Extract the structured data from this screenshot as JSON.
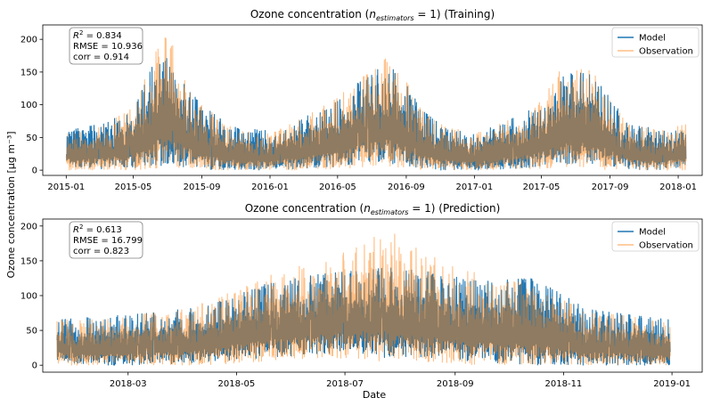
{
  "figure": {
    "ylabel": "Ozone concentration [μg m⁻³]",
    "xlabel": "Date"
  },
  "colors": {
    "model": "#1f77b4",
    "observation": "#ff7f0e",
    "overlap": "#8b7a61"
  },
  "chart_data": [
    {
      "type": "line",
      "title_prefix": "Ozone concentration (",
      "title_sym": "n",
      "title_sub": "estimators",
      "title_eq": " = 1)",
      "title_suffix": " (Training)",
      "x_range": [
        "2014-11-20",
        "2018-02-13"
      ],
      "ylim": [
        -8,
        222
      ],
      "y_ticks": [
        0,
        50,
        100,
        150,
        200
      ],
      "x_ticks": [
        {
          "date": "2015-01-01",
          "label": "2015-01"
        },
        {
          "date": "2015-05-01",
          "label": "2015-05"
        },
        {
          "date": "2015-09-01",
          "label": "2015-09"
        },
        {
          "date": "2016-01-01",
          "label": "2016-01"
        },
        {
          "date": "2016-05-01",
          "label": "2016-05"
        },
        {
          "date": "2016-09-01",
          "label": "2016-09"
        },
        {
          "date": "2017-01-01",
          "label": "2017-01"
        },
        {
          "date": "2017-05-01",
          "label": "2017-05"
        },
        {
          "date": "2017-09-01",
          "label": "2017-09"
        },
        {
          "date": "2018-01-01",
          "label": "2018-01"
        }
      ],
      "stats": {
        "r2_label": "R",
        "r2_sup": "2",
        "r2_value": " =  0.834",
        "rmse": "RMSE = 10.936",
        "corr": "corr =  0.914"
      },
      "legend": [
        "Model",
        "Observation"
      ],
      "series": [
        {
          "name": "Model",
          "x": [
            "2015-01-01",
            "2015-03-01",
            "2015-05-01",
            "2015-06-15",
            "2015-07-01",
            "2015-08-01",
            "2015-09-01",
            "2015-10-01",
            "2015-11-01",
            "2016-01-01",
            "2016-03-01",
            "2016-05-01",
            "2016-06-01",
            "2016-07-01",
            "2016-08-01",
            "2016-09-01",
            "2016-10-01",
            "2016-11-01",
            "2017-01-01",
            "2017-03-01",
            "2017-05-01",
            "2017-06-01",
            "2017-07-01",
            "2017-08-01",
            "2017-09-01",
            "2017-10-01",
            "2017-12-01",
            "2018-01-15"
          ],
          "y_high": [
            60,
            70,
            90,
            180,
            170,
            130,
            100,
            80,
            65,
            60,
            80,
            105,
            130,
            145,
            170,
            130,
            90,
            70,
            55,
            75,
            100,
            140,
            150,
            145,
            110,
            75,
            60,
            60
          ],
          "y_low": [
            5,
            2,
            3,
            5,
            10,
            5,
            2,
            0,
            0,
            0,
            2,
            5,
            8,
            10,
            8,
            5,
            2,
            0,
            0,
            2,
            5,
            8,
            10,
            8,
            5,
            0,
            0,
            5
          ]
        },
        {
          "name": "Observation",
          "x": [
            "2015-01-01",
            "2015-03-01",
            "2015-05-01",
            "2015-06-15",
            "2015-07-01",
            "2015-08-01",
            "2015-09-01",
            "2015-10-01",
            "2015-11-01",
            "2016-01-01",
            "2016-03-01",
            "2016-05-01",
            "2016-06-01",
            "2016-07-01",
            "2016-08-01",
            "2016-09-01",
            "2016-10-01",
            "2016-11-01",
            "2017-01-01",
            "2017-03-01",
            "2017-05-01",
            "2017-06-01",
            "2017-07-01",
            "2017-08-01",
            "2017-09-01",
            "2017-10-01",
            "2017-12-01",
            "2018-01-15"
          ],
          "y_high": [
            55,
            65,
            95,
            190,
            213,
            140,
            100,
            80,
            60,
            55,
            80,
            110,
            135,
            150,
            175,
            135,
            90,
            70,
            55,
            75,
            105,
            150,
            160,
            150,
            110,
            70,
            60,
            70
          ],
          "y_low": [
            0,
            0,
            0,
            2,
            5,
            2,
            0,
            0,
            0,
            0,
            0,
            2,
            3,
            5,
            3,
            0,
            0,
            0,
            0,
            0,
            2,
            3,
            5,
            3,
            0,
            0,
            0,
            0
          ]
        }
      ]
    },
    {
      "type": "line",
      "title_prefix": "Ozone concentration (",
      "title_sym": "n",
      "title_sub": "estimators",
      "title_eq": " = 1)",
      "title_suffix": " (Prediction)",
      "x_range": [
        "2018-01-12",
        "2019-01-18"
      ],
      "ylim": [
        -10,
        210
      ],
      "y_ticks": [
        0,
        50,
        100,
        150,
        200
      ],
      "x_ticks": [
        {
          "date": "2018-03-01",
          "label": "2018-03"
        },
        {
          "date": "2018-05-01",
          "label": "2018-05"
        },
        {
          "date": "2018-07-01",
          "label": "2018-07"
        },
        {
          "date": "2018-09-01",
          "label": "2018-09"
        },
        {
          "date": "2018-11-01",
          "label": "2018-11"
        },
        {
          "date": "2019-01-01",
          "label": "2019-01"
        }
      ],
      "stats": {
        "r2_label": "R",
        "r2_sup": "2",
        "r2_value": " =  0.613",
        "rmse": "RMSE = 16.799",
        "corr": "corr =  0.823"
      },
      "legend": [
        "Model",
        "Observation"
      ],
      "series": [
        {
          "name": "Model",
          "x": [
            "2018-01-20",
            "2018-02-15",
            "2018-03-15",
            "2018-04-15",
            "2018-05-15",
            "2018-06-15",
            "2018-07-05",
            "2018-07-25",
            "2018-08-15",
            "2018-09-15",
            "2018-10-15",
            "2018-11-15",
            "2018-12-15",
            "2018-12-31"
          ],
          "y_high": [
            65,
            70,
            75,
            85,
            115,
            130,
            135,
            140,
            135,
            120,
            125,
            80,
            70,
            65
          ],
          "y_low": [
            5,
            0,
            0,
            5,
            10,
            15,
            20,
            10,
            10,
            5,
            0,
            0,
            0,
            0
          ]
        },
        {
          "name": "Observation",
          "x": [
            "2018-01-20",
            "2018-02-15",
            "2018-03-15",
            "2018-04-15",
            "2018-05-15",
            "2018-06-15",
            "2018-07-05",
            "2018-07-25",
            "2018-08-15",
            "2018-09-15",
            "2018-10-15",
            "2018-11-15",
            "2018-12-15",
            "2018-12-31"
          ],
          "y_high": [
            65,
            65,
            75,
            90,
            125,
            150,
            165,
            195,
            160,
            130,
            115,
            75,
            70,
            60
          ],
          "y_low": [
            0,
            0,
            0,
            0,
            5,
            10,
            10,
            5,
            5,
            0,
            0,
            0,
            0,
            0
          ]
        }
      ]
    }
  ]
}
